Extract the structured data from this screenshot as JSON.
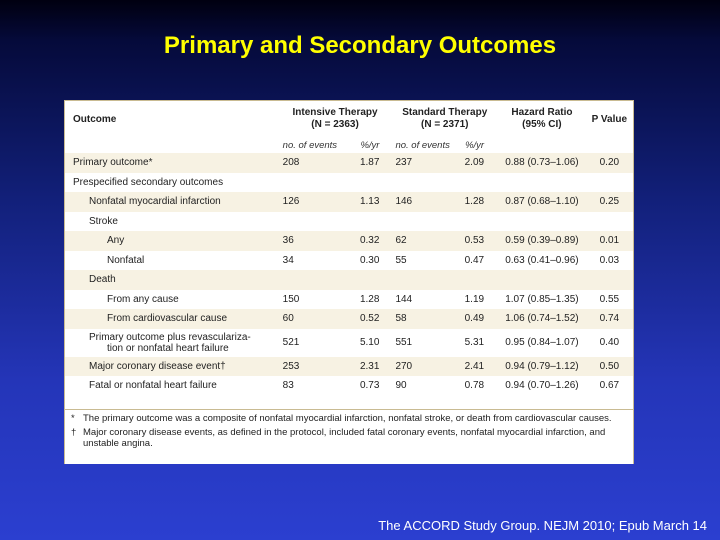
{
  "title": "Primary and Secondary Outcomes",
  "table": {
    "headers": {
      "outcome": "Outcome",
      "intensive": "Intensive Therapy",
      "intensive_n": "(N = 2363)",
      "standard": "Standard Therapy",
      "standard_n": "(N = 2371)",
      "hr": "Hazard Ratio",
      "hr_ci": "(95% CI)",
      "pvalue": "P Value",
      "sub_events": "no. of events",
      "sub_rate": "%/yr"
    },
    "rows": [
      {
        "label": "Primary outcome*",
        "int_n": "208",
        "int_pct": "1.87",
        "std_n": "237",
        "std_pct": "2.09",
        "hr": "0.88 (0.73–1.06)",
        "p": "0.20"
      },
      {
        "label": "Prespecified secondary outcomes",
        "int_n": "",
        "int_pct": "",
        "std_n": "",
        "std_pct": "",
        "hr": "",
        "p": ""
      },
      {
        "label": "Nonfatal myocardial infarction",
        "int_n": "126",
        "int_pct": "1.13",
        "std_n": "146",
        "std_pct": "1.28",
        "hr": "0.87 (0.68–1.10)",
        "p": "0.25"
      },
      {
        "label": "Stroke",
        "int_n": "",
        "int_pct": "",
        "std_n": "",
        "std_pct": "",
        "hr": "",
        "p": ""
      },
      {
        "label": "Any",
        "int_n": "36",
        "int_pct": "0.32",
        "std_n": "62",
        "std_pct": "0.53",
        "hr": "0.59 (0.39–0.89)",
        "p": "0.01"
      },
      {
        "label": "Nonfatal",
        "int_n": "34",
        "int_pct": "0.30",
        "std_n": "55",
        "std_pct": "0.47",
        "hr": "0.63 (0.41–0.96)",
        "p": "0.03"
      },
      {
        "label": "Death",
        "int_n": "",
        "int_pct": "",
        "std_n": "",
        "std_pct": "",
        "hr": "",
        "p": ""
      },
      {
        "label": "From any cause",
        "int_n": "150",
        "int_pct": "1.28",
        "std_n": "144",
        "std_pct": "1.19",
        "hr": "1.07 (0.85–1.35)",
        "p": "0.55"
      },
      {
        "label": "From cardiovascular cause",
        "int_n": "60",
        "int_pct": "0.52",
        "std_n": "58",
        "std_pct": "0.49",
        "hr": "1.06 (0.74–1.52)",
        "p": "0.74"
      },
      {
        "label": "Primary outcome plus revascularization or nonfatal heart failure",
        "label_line1": "Primary outcome plus revasculariza-",
        "label_line2": "tion or nonfatal heart failure",
        "int_n": "521",
        "int_pct": "5.10",
        "std_n": "551",
        "std_pct": "5.31",
        "hr": "0.95 (0.84–1.07)",
        "p": "0.40"
      },
      {
        "label": "Major coronary disease event†",
        "int_n": "253",
        "int_pct": "2.31",
        "std_n": "270",
        "std_pct": "2.41",
        "hr": "0.94 (0.79–1.12)",
        "p": "0.50"
      },
      {
        "label": "Fatal or nonfatal heart failure",
        "int_n": "83",
        "int_pct": "0.73",
        "std_n": "90",
        "std_pct": "0.78",
        "hr": "0.94 (0.70–1.26)",
        "p": "0.67"
      }
    ],
    "footnotes": [
      {
        "mark": "*",
        "text": "The primary outcome was a composite of nonfatal myocardial infarction, nonfatal stroke, or death from cardiovascular causes."
      },
      {
        "mark": "†",
        "text": "Major coronary disease events, as defined in the protocol, included fatal coronary events, nonfatal myocardial infarction, and unstable angina."
      }
    ]
  },
  "citation": "The ACCORD Study Group. NEJM 2010; Epub March 14"
}
